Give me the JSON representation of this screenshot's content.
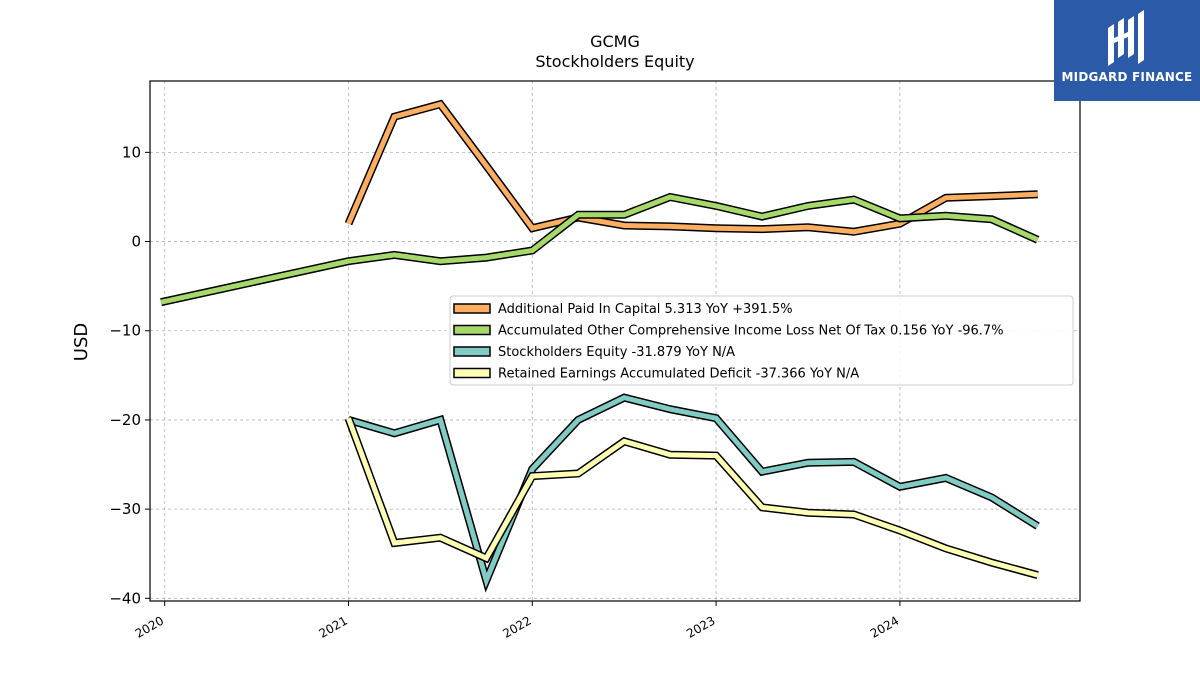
{
  "brand": {
    "name": "MIDGARD FINANCE",
    "bg_color": "#2b5aa8"
  },
  "chart_data": {
    "type": "line",
    "title": "GCMG",
    "subtitle": "Stockholders  Equity",
    "xlabel": "",
    "ylabel": "USD",
    "ylim": [
      -40.3,
      18
    ],
    "xlim": [
      2019.92,
      2024.98
    ],
    "x_ticks": [
      2020,
      2021,
      2022,
      2023,
      2024
    ],
    "x_tick_labels": [
      "2020",
      "2021",
      "2022",
      "2023",
      "2024"
    ],
    "y_ticks": [
      10,
      0,
      -10,
      -20,
      -30,
      -40
    ],
    "y_tick_labels": [
      "10",
      "0",
      "−10",
      "−20",
      "−30",
      "−40"
    ],
    "grid": true,
    "legend_position": "center-right",
    "series": [
      {
        "name": "Additional Paid In Capital  5.313 YoY +391.5%",
        "color": "#fdae61",
        "x": [
          2021.0,
          2021.25,
          2021.5,
          2021.75,
          2022.0,
          2022.25,
          2022.5,
          2022.75,
          2023.0,
          2023.25,
          2023.5,
          2023.75,
          2024.0,
          2024.25,
          2024.5,
          2024.75
        ],
        "y": [
          2.0,
          14.0,
          15.4,
          8.5,
          1.5,
          2.7,
          1.8,
          1.7,
          1.5,
          1.4,
          1.6,
          1.1,
          2.0,
          4.9,
          5.1,
          5.3
        ]
      },
      {
        "name": "Accumulated Other Comprehensive Income Loss Net Of Tax  0.156 YoY -96.7%",
        "color": "#a6d96a",
        "x": [
          2019.98,
          2021.0,
          2021.25,
          2021.5,
          2021.75,
          2022.0,
          2022.25,
          2022.5,
          2022.75,
          2023.0,
          2023.25,
          2023.5,
          2023.75,
          2024.0,
          2024.25,
          2024.5,
          2024.75
        ],
        "y": [
          -6.8,
          -2.2,
          -1.5,
          -2.2,
          -1.8,
          -1.0,
          3.0,
          3.0,
          5.0,
          4.0,
          2.8,
          4.0,
          4.7,
          2.6,
          2.9,
          2.5,
          0.2
        ]
      },
      {
        "name": "Stockholders Equity  -31.879 YoY N/A",
        "color": "#80cbc4",
        "x": [
          2021.0,
          2021.25,
          2021.5,
          2021.75,
          2022.0,
          2022.25,
          2022.5,
          2022.75,
          2023.0,
          2023.25,
          2023.5,
          2023.75,
          2024.0,
          2024.25,
          2024.5,
          2024.75
        ],
        "y": [
          -20.0,
          -21.5,
          -20.0,
          -38.0,
          -25.5,
          -20.0,
          -17.5,
          -18.8,
          -19.8,
          -25.8,
          -24.8,
          -24.7,
          -27.5,
          -26.5,
          -28.7,
          -31.9
        ]
      },
      {
        "name": "Retained Earnings Accumulated Deficit  -37.366 YoY N/A",
        "color": "#ffffb3",
        "x": [
          2021.0,
          2021.25,
          2021.5,
          2021.75,
          2022.0,
          2022.25,
          2022.5,
          2022.75,
          2023.0,
          2023.25,
          2023.5,
          2023.75,
          2024.0,
          2024.25,
          2024.5,
          2024.75
        ],
        "y": [
          -19.8,
          -33.8,
          -33.2,
          -35.5,
          -26.3,
          -26.0,
          -22.4,
          -23.9,
          -24.0,
          -29.8,
          -30.4,
          -30.6,
          -32.4,
          -34.4,
          -36.0,
          -37.4
        ]
      }
    ]
  }
}
